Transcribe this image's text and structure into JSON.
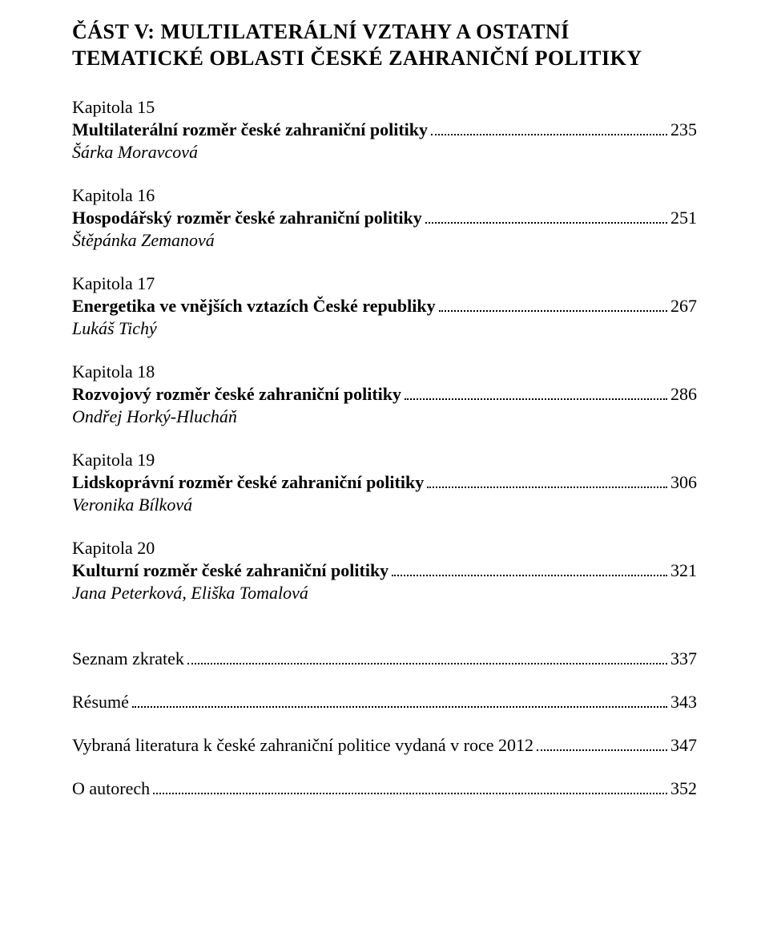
{
  "part_heading_line1": "Část V: Multilaterální vztahy a ostatní",
  "part_heading_line2": "tematické oblasti české zahraniční politiky",
  "chapters": [
    {
      "label": "Kapitola 15",
      "title": "Multilaterální rozměr české zahraniční politiky",
      "page": "235",
      "author": "Šárka Moravcová"
    },
    {
      "label": "Kapitola 16",
      "title": "Hospodářský rozměr české zahraniční politiky",
      "page": "251",
      "author": "Štěpánka Zemanová"
    },
    {
      "label": "Kapitola 17",
      "title": "Energetika ve vnějších vztazích České republiky",
      "page": "267",
      "author": "Lukáš Tichý"
    },
    {
      "label": "Kapitola 18",
      "title": "Rozvojový rozměr české zahraniční politiky",
      "page": "286",
      "author": "Ondřej Horký-Hlucháň"
    },
    {
      "label": "Kapitola 19",
      "title": "Lidskoprávní rozměr české zahraniční politiky",
      "page": "306",
      "author": "Veronika Bílková"
    },
    {
      "label": "Kapitola 20",
      "title": "Kulturní rozměr české zahraniční politiky",
      "page": "321",
      "author": "Jana Peterková, Eliška Tomalová"
    }
  ],
  "backmatter": [
    {
      "title": "Seznam zkratek",
      "page": "337"
    },
    {
      "title": "Résumé",
      "page": "343"
    },
    {
      "title": "Vybraná literatura k české zahraniční politice vydaná v roce 2012",
      "page": "347"
    },
    {
      "title": "O autorech",
      "page": "352"
    }
  ]
}
